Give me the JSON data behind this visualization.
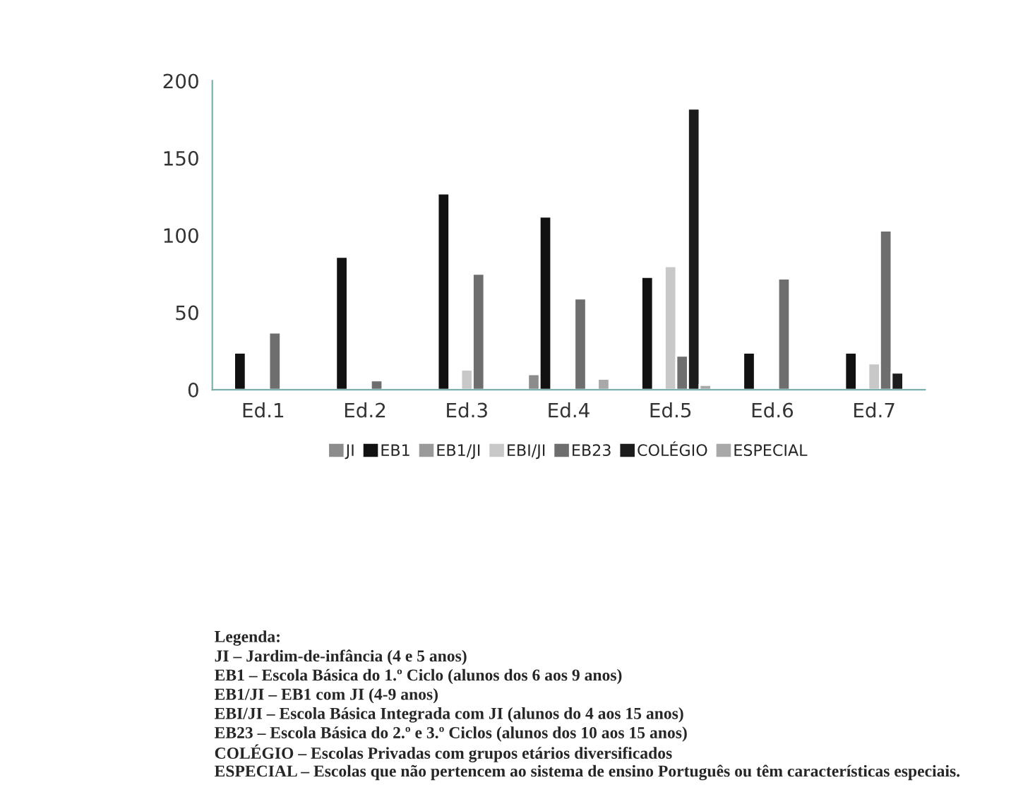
{
  "chart_data": {
    "type": "bar",
    "categories": [
      "Ed.1",
      "Ed.2",
      "Ed.3",
      "Ed.4",
      "Ed.5",
      "Ed.6",
      "Ed.7"
    ],
    "series": [
      {
        "name": "JI",
        "color": "#8c8c8c",
        "values": [
          null,
          null,
          null,
          10,
          null,
          null,
          null
        ]
      },
      {
        "name": "EB1",
        "color": "#111111",
        "values": [
          24,
          86,
          127,
          112,
          73,
          24,
          24
        ]
      },
      {
        "name": "EB1/JI",
        "color": "#9a9a9a",
        "values": [
          null,
          null,
          null,
          null,
          null,
          null,
          null
        ]
      },
      {
        "name": "EBI/JI",
        "color": "#c8c8c8",
        "values": [
          null,
          null,
          13,
          null,
          80,
          null,
          17
        ]
      },
      {
        "name": "EB23",
        "color": "#6e6e6e",
        "values": [
          37,
          6,
          75,
          59,
          22,
          72,
          103
        ]
      },
      {
        "name": "COLÉGIO",
        "color": "#1c1c1c",
        "values": [
          null,
          null,
          null,
          null,
          182,
          null,
          11
        ]
      },
      {
        "name": "ESPECIAL",
        "color": "#a8a8a8",
        "values": [
          null,
          null,
          null,
          7,
          3,
          null,
          null
        ]
      }
    ],
    "ylim": [
      0,
      200
    ],
    "yticks": [
      0,
      50,
      100,
      150,
      200
    ],
    "grid": false,
    "legend": "bottom",
    "annotations": [
      "Legenda:",
      "JI – Jardim-de-infância (4 e 5 anos)",
      "EB1 – Escola Básica do 1.º Ciclo (alunos dos 6 aos 9 anos)",
      "EB1/JI – EB1 com JI (4-9 anos)",
      "EBI/JI – Escola Básica Integrada com JI (alunos do 4 aos 15 anos)",
      "EB23 – Escola Básica do 2.º e 3.º Ciclos (alunos dos 10 aos 15 anos)",
      "COLÉGIO – Escolas Privadas com grupos etários diversificados",
      "ESPECIAL – Escolas que não pertencem ao sistema de ensino Português ou têm características especiais."
    ]
  }
}
